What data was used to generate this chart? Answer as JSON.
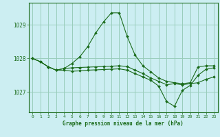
{
  "title": "Graphe pression niveau de la mer (hPa)",
  "background_color": "#cceef2",
  "grid_color": "#99ccbb",
  "line_color": "#1a6b1a",
  "xlim": [
    -0.5,
    23.5
  ],
  "ylim": [
    1026.4,
    1029.65
  ],
  "yticks": [
    1027,
    1028,
    1029
  ],
  "xticks": [
    0,
    1,
    2,
    3,
    4,
    5,
    6,
    7,
    8,
    9,
    10,
    11,
    12,
    13,
    14,
    15,
    16,
    17,
    18,
    19,
    20,
    21,
    22,
    23
  ],
  "series": [
    [
      1028.0,
      1027.9,
      1027.75,
      1027.65,
      1027.7,
      1027.72,
      1027.73,
      1027.74,
      1027.75,
      1027.76,
      1027.77,
      1027.78,
      1027.76,
      1027.65,
      1027.55,
      1027.42,
      1027.32,
      1027.22,
      1027.25,
      1027.22,
      1027.25,
      1027.28,
      1027.38,
      1027.45
    ],
    [
      1028.0,
      1027.9,
      1027.75,
      1027.65,
      1027.7,
      1027.85,
      1028.05,
      1028.35,
      1028.75,
      1029.08,
      1029.35,
      1029.35,
      1028.65,
      1028.1,
      1027.78,
      1027.6,
      1027.42,
      1027.32,
      1027.28,
      1027.25,
      1027.28,
      1027.75,
      1027.78,
      1027.78
    ],
    [
      1028.0,
      1027.9,
      1027.75,
      1027.65,
      1027.65,
      1027.62,
      1027.63,
      1027.65,
      1027.66,
      1027.67,
      1027.68,
      1027.69,
      1027.65,
      1027.55,
      1027.45,
      1027.35,
      1027.18,
      1026.72,
      1026.58,
      1027.05,
      1027.2,
      1027.5,
      1027.68,
      1027.72
    ]
  ]
}
